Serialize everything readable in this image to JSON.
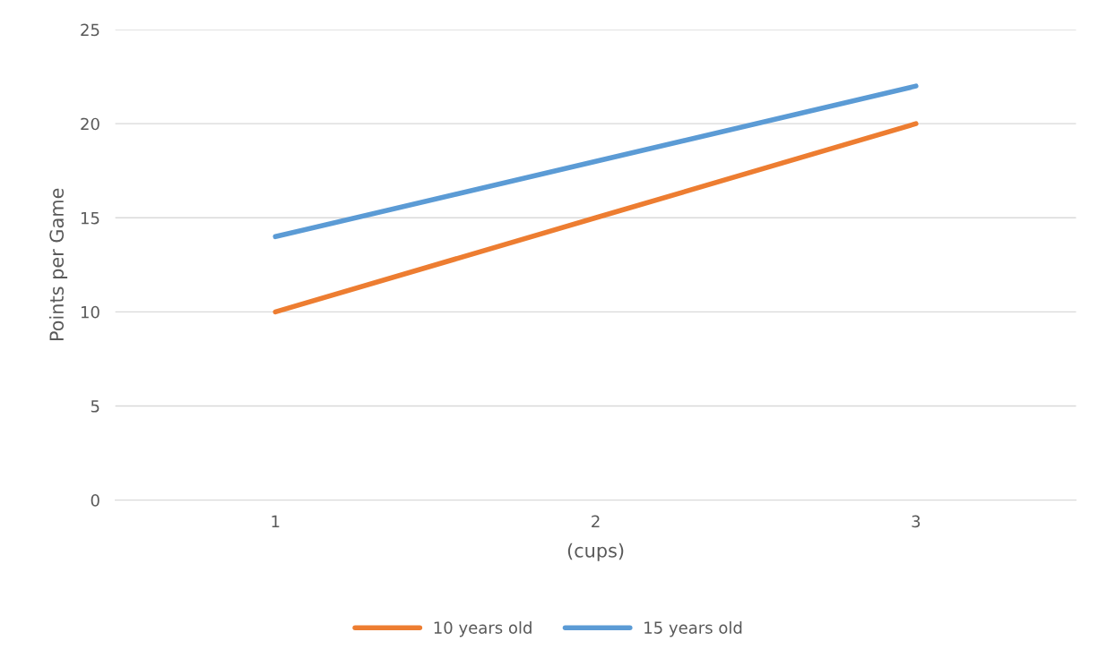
{
  "chart_data": {
    "type": "line",
    "xlabel": "(cups)",
    "ylabel": "Points per Game",
    "categories": [
      "1",
      "2",
      "3"
    ],
    "series": [
      {
        "name": "10 years old",
        "color": "#ed7d31",
        "values": [
          10,
          15,
          20
        ]
      },
      {
        "name": "15 years old",
        "color": "#5b9bd5",
        "values": [
          14,
          18,
          22
        ]
      }
    ],
    "ylim": [
      0,
      25
    ],
    "yticks": [
      0,
      5,
      10,
      15,
      20,
      25
    ],
    "grid": "y",
    "legend": "bottom",
    "marker": "none",
    "line_style": "solid"
  }
}
